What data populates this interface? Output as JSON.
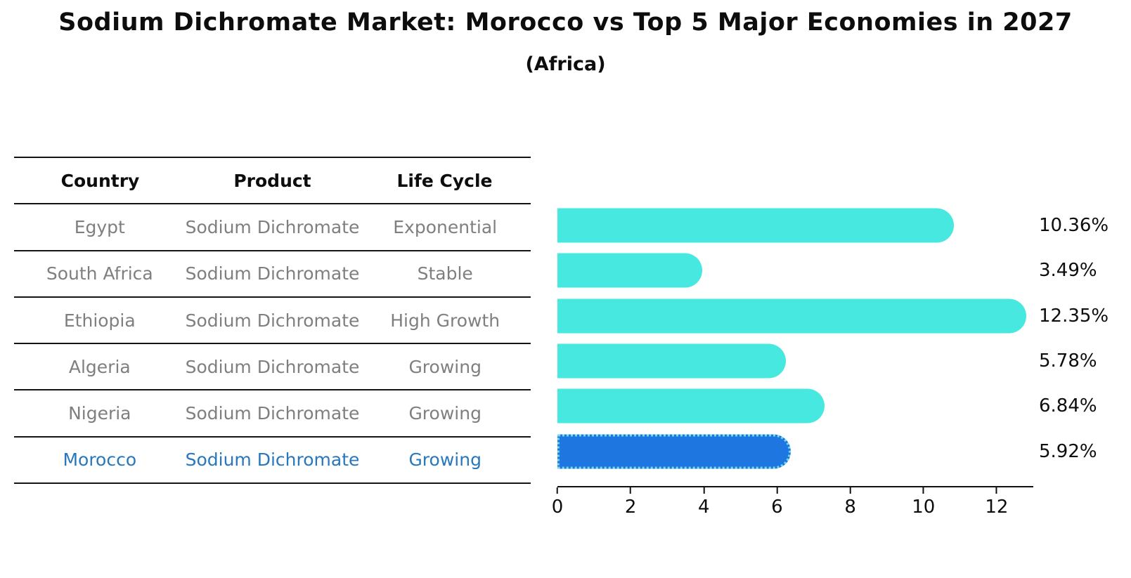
{
  "header": {
    "title": "Sodium Dichromate Market: Morocco vs Top 5 Major Economies in 2027",
    "subtitle": "(Africa)"
  },
  "table": {
    "columns": [
      "Country",
      "Product",
      "Life Cycle"
    ],
    "rows": [
      {
        "country": "Egypt",
        "product": "Sodium Dichromate",
        "life_cycle": "Exponential",
        "highlight": false
      },
      {
        "country": "South Africa",
        "product": "Sodium Dichromate",
        "life_cycle": "Stable",
        "highlight": false
      },
      {
        "country": "Ethiopia",
        "product": "Sodium Dichromate",
        "life_cycle": "High Growth",
        "highlight": false
      },
      {
        "country": "Algeria",
        "product": "Sodium Dichromate",
        "life_cycle": "Growing",
        "highlight": false
      },
      {
        "country": "Nigeria",
        "product": "Sodium Dichromate",
        "life_cycle": "Growing",
        "highlight": false
      },
      {
        "country": "Morocco",
        "product": "Sodium Dichromate",
        "life_cycle": "Growing",
        "highlight": true
      }
    ]
  },
  "chart_data": {
    "type": "bar",
    "orientation": "horizontal",
    "title": "Sodium Dichromate Market: Morocco vs Top 5 Major Economies in 2027",
    "subtitle": "(Africa)",
    "categories": [
      "Egypt",
      "South Africa",
      "Ethiopia",
      "Algeria",
      "Nigeria",
      "Morocco"
    ],
    "values": [
      10.36,
      3.49,
      12.35,
      5.78,
      6.84,
      5.92
    ],
    "labels": [
      "10.36%",
      "3.49%",
      "12.35%",
      "5.78%",
      "6.84%",
      "5.92%"
    ],
    "value_unit": "%",
    "highlight_index": 5,
    "xticks": [
      0,
      2,
      4,
      6,
      8,
      10,
      12
    ],
    "xlim": [
      0,
      13
    ],
    "grid": false,
    "legend": "none",
    "bar_color": "#46e8df",
    "highlight_bar_color": "#1e77e0",
    "highlight_border_color": "#74d8e8",
    "highlight_text_color": "#2878be",
    "text_color": "#7f7f7f"
  }
}
